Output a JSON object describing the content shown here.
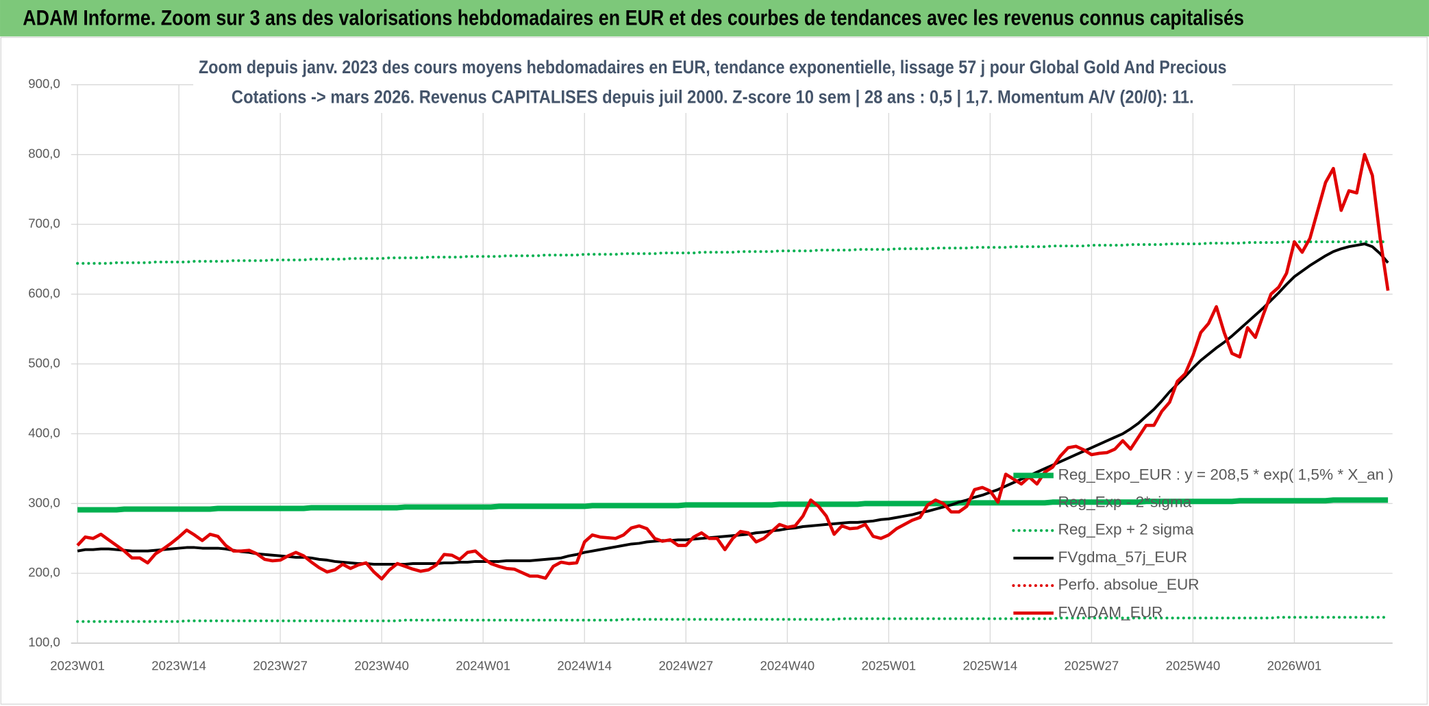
{
  "header": "ADAM Informe. Zoom sur 3 ans des valorisations hebdomadaires en EUR et des courbes de tendances avec les revenus connus capitalisés",
  "chart_data": {
    "type": "line",
    "title_lines": [
      "Zoom depuis janv. 2023 des cours moyens hebdomadaires en EUR, tendance exponentielle, lissage 57 j pour Global Gold And Precious",
      "Cotations -> mars 2026. Revenus CAPITALISES depuis juil 2000. Z-score 10 sem | 28 ans : 0,5 | 1,7. Momentum A/V (20/0): 11."
    ],
    "categories": [
      "2023W01",
      null,
      null,
      null,
      null,
      null,
      null,
      null,
      null,
      null,
      null,
      null,
      null,
      "2023W14",
      null,
      null,
      null,
      null,
      null,
      null,
      null,
      null,
      null,
      null,
      null,
      null,
      "2023W27",
      null,
      null,
      null,
      null,
      null,
      null,
      null,
      null,
      null,
      null,
      null,
      null,
      "2023W40",
      null,
      null,
      null,
      null,
      null,
      null,
      null,
      null,
      null,
      null,
      null,
      null,
      "2024W01",
      null,
      null,
      null,
      null,
      null,
      null,
      null,
      null,
      null,
      null,
      null,
      null,
      "2024W14",
      null,
      null,
      null,
      null,
      null,
      null,
      null,
      null,
      null,
      null,
      null,
      null,
      "2024W27",
      null,
      null,
      null,
      null,
      null,
      null,
      null,
      null,
      null,
      null,
      null,
      null,
      "2024W40",
      null,
      null,
      null,
      null,
      null,
      null,
      null,
      null,
      null,
      null,
      null,
      null,
      "2025W01",
      null,
      null,
      null,
      null,
      null,
      null,
      null,
      null,
      null,
      null,
      null,
      null,
      "2025W14",
      null,
      null,
      null,
      null,
      null,
      null,
      null,
      null,
      null,
      null,
      null,
      null,
      "2025W27",
      null,
      null,
      null,
      null,
      null,
      null,
      null,
      null,
      null,
      null,
      null,
      null,
      "2025W40",
      null,
      null,
      null,
      null,
      null,
      null,
      null,
      null,
      null,
      null,
      null,
      null,
      "2026W01",
      null,
      null,
      null,
      null,
      null,
      null,
      null,
      null,
      null,
      null,
      null,
      null
    ],
    "ylim": [
      100,
      900
    ],
    "yticks": [
      {
        "value": 100,
        "label": "100,0"
      },
      {
        "value": 200,
        "label": "200,0"
      },
      {
        "value": 300,
        "label": "300,0"
      },
      {
        "value": 400,
        "label": "400,0"
      },
      {
        "value": 500,
        "label": "500,0"
      },
      {
        "value": 600,
        "label": "600,0"
      },
      {
        "value": 700,
        "label": "700,0"
      },
      {
        "value": 800,
        "label": "800,0"
      },
      {
        "value": 900,
        "label": "900,0"
      }
    ],
    "grid": true,
    "legend": "right",
    "series": [
      {
        "name": "Reg_Expo_EUR : y = 208,5 * exp( 1,5% *  X_an )",
        "color": "#00b050",
        "style": "solid",
        "width": 6,
        "values": [
          291,
          291,
          291,
          291,
          291,
          291,
          292,
          292,
          292,
          292,
          292,
          292,
          292,
          292,
          292,
          292,
          292,
          292,
          293,
          293,
          293,
          293,
          293,
          293,
          293,
          293,
          293,
          293,
          293,
          293,
          294,
          294,
          294,
          294,
          294,
          294,
          294,
          294,
          294,
          294,
          294,
          294,
          295,
          295,
          295,
          295,
          295,
          295,
          295,
          295,
          295,
          295,
          295,
          295,
          296,
          296,
          296,
          296,
          296,
          296,
          296,
          296,
          296,
          296,
          296,
          296,
          297,
          297,
          297,
          297,
          297,
          297,
          297,
          297,
          297,
          297,
          297,
          297,
          298,
          298,
          298,
          298,
          298,
          298,
          298,
          298,
          298,
          298,
          298,
          298,
          299,
          299,
          299,
          299,
          299,
          299,
          299,
          299,
          299,
          299,
          299,
          300,
          300,
          300,
          300,
          300,
          300,
          300,
          300,
          300,
          300,
          300,
          300,
          301,
          301,
          301,
          301,
          301,
          301,
          301,
          301,
          301,
          301,
          301,
          301,
          302,
          302,
          302,
          302,
          302,
          302,
          302,
          302,
          302,
          302,
          302,
          302,
          303,
          303,
          303,
          303,
          303,
          303,
          303,
          303,
          303,
          303,
          303,
          303,
          304,
          304,
          304,
          304,
          304,
          304,
          304,
          304,
          304,
          304,
          304,
          304,
          305,
          305,
          305,
          305,
          305,
          305,
          305,
          305
        ]
      },
      {
        "name": "Reg_Exp - 2*sigma",
        "color": "#00b050",
        "style": "dotted",
        "width": 3,
        "values": [
          131,
          131,
          131,
          131,
          131,
          131,
          131,
          131,
          131,
          131,
          131,
          131,
          131,
          131,
          132,
          132,
          132,
          132,
          132,
          132,
          132,
          132,
          132,
          132,
          132,
          132,
          132,
          132,
          132,
          132,
          132,
          132,
          132,
          132,
          132,
          132,
          132,
          132,
          132,
          132,
          132,
          132,
          133,
          133,
          133,
          133,
          133,
          133,
          133,
          133,
          133,
          133,
          133,
          133,
          133,
          133,
          133,
          133,
          133,
          133,
          133,
          133,
          133,
          133,
          133,
          133,
          133,
          133,
          133,
          133,
          134,
          134,
          134,
          134,
          134,
          134,
          134,
          134,
          134,
          134,
          134,
          134,
          134,
          134,
          134,
          134,
          134,
          134,
          134,
          134,
          134,
          134,
          134,
          134,
          134,
          134,
          134,
          134,
          135,
          135,
          135,
          135,
          135,
          135,
          135,
          135,
          135,
          135,
          135,
          135,
          135,
          135,
          135,
          135,
          135,
          135,
          135,
          135,
          135,
          135,
          135,
          135,
          135,
          135,
          135,
          135,
          136,
          136,
          136,
          136,
          136,
          136,
          136,
          136,
          136,
          136,
          136,
          136,
          136,
          136,
          136,
          136,
          136,
          136,
          136,
          136,
          136,
          136,
          136,
          136,
          136,
          136,
          136,
          136,
          137,
          137,
          137,
          137,
          137,
          137,
          137,
          137,
          137,
          137,
          137,
          137,
          137,
          137,
          137
        ]
      },
      {
        "name": "Reg_Exp + 2 sigma",
        "color": "#00b050",
        "style": "dotted",
        "width": 3,
        "values": [
          644,
          644,
          644,
          644,
          644,
          645,
          645,
          645,
          645,
          645,
          646,
          646,
          646,
          646,
          646,
          647,
          647,
          647,
          647,
          647,
          648,
          648,
          648,
          648,
          648,
          649,
          649,
          649,
          649,
          649,
          650,
          650,
          650,
          650,
          650,
          651,
          651,
          651,
          651,
          651,
          652,
          652,
          652,
          652,
          652,
          653,
          653,
          653,
          653,
          653,
          654,
          654,
          654,
          654,
          654,
          655,
          655,
          655,
          655,
          655,
          656,
          656,
          656,
          656,
          656,
          657,
          657,
          657,
          657,
          657,
          658,
          658,
          658,
          658,
          658,
          659,
          659,
          659,
          659,
          659,
          660,
          660,
          660,
          660,
          660,
          661,
          661,
          661,
          661,
          661,
          662,
          662,
          662,
          662,
          662,
          663,
          663,
          663,
          663,
          663,
          664,
          664,
          664,
          664,
          664,
          665,
          665,
          665,
          665,
          665,
          666,
          666,
          666,
          666,
          666,
          667,
          667,
          667,
          667,
          667,
          668,
          668,
          668,
          668,
          668,
          669,
          669,
          669,
          669,
          669,
          670,
          670,
          670,
          670,
          670,
          671,
          671,
          671,
          671,
          671,
          672,
          672,
          672,
          672,
          672,
          673,
          673,
          673,
          673,
          673,
          674,
          674,
          674,
          674,
          674,
          675,
          675,
          675,
          675,
          675,
          675,
          675,
          675,
          675,
          675,
          675,
          675,
          675,
          675
        ]
      },
      {
        "name": "FVgdma_57j_EUR",
        "color": "#000000",
        "style": "solid",
        "width": 3,
        "values": [
          232,
          234,
          234,
          235,
          235,
          234,
          233,
          232,
          232,
          232,
          233,
          234,
          235,
          236,
          237,
          237,
          236,
          236,
          236,
          235,
          233,
          231,
          230,
          228,
          227,
          226,
          225,
          224,
          223,
          223,
          222,
          220,
          219,
          217,
          216,
          215,
          214,
          214,
          213,
          213,
          213,
          213,
          213,
          214,
          214,
          214,
          214,
          215,
          215,
          216,
          216,
          217,
          217,
          217,
          217,
          218,
          218,
          218,
          218,
          219,
          220,
          221,
          222,
          225,
          227,
          230,
          232,
          234,
          236,
          238,
          240,
          242,
          243,
          245,
          246,
          247,
          247,
          248,
          248,
          249,
          250,
          251,
          252,
          253,
          254,
          255,
          256,
          258,
          259,
          261,
          262,
          264,
          265,
          267,
          268,
          269,
          270,
          271,
          272,
          273,
          273,
          274,
          275,
          277,
          278,
          280,
          282,
          284,
          287,
          289,
          292,
          295,
          298,
          302,
          305,
          309,
          312,
          316,
          320,
          325,
          330,
          335,
          340,
          345,
          350,
          355,
          360,
          365,
          370,
          375,
          380,
          385,
          390,
          395,
          400,
          407,
          415,
          425,
          435,
          447,
          460,
          471,
          482,
          494,
          505,
          514,
          523,
          531,
          540,
          550,
          560,
          570,
          580,
          591,
          602,
          614,
          625,
          633,
          641,
          648,
          655,
          661,
          665,
          668,
          670,
          672,
          668,
          658,
          645
        ]
      },
      {
        "name": "Perfo. absolue_EUR",
        "color": "#e00000",
        "style": "dotted",
        "width": 3,
        "values": [
          null,
          null,
          null,
          null,
          null,
          null,
          null,
          null,
          null,
          null,
          null,
          null,
          null,
          null,
          null,
          null,
          null,
          null,
          null,
          null,
          null,
          null,
          null,
          null,
          null,
          null,
          null,
          null,
          null,
          null,
          null,
          null,
          null,
          null,
          null,
          null,
          null,
          null,
          null,
          null,
          null,
          null,
          null,
          null,
          null,
          null,
          null,
          null,
          null,
          null,
          null,
          null,
          null,
          null,
          null,
          null,
          null,
          null,
          null,
          null,
          null,
          null,
          null,
          null,
          null,
          null,
          null,
          null,
          null,
          null,
          null,
          null,
          null,
          null,
          null,
          null,
          null,
          null,
          null,
          null,
          null,
          null,
          null,
          null,
          null,
          null,
          null,
          null,
          null,
          null,
          null,
          null,
          null,
          null,
          null,
          null,
          null,
          null,
          null,
          null,
          null,
          null,
          null,
          null,
          null,
          null,
          null,
          null,
          null,
          null,
          null,
          null,
          null,
          null,
          null,
          null,
          null,
          null,
          null,
          null,
          null,
          null,
          null,
          null,
          null,
          null,
          null,
          null,
          null,
          null,
          null,
          null,
          null,
          null,
          null,
          null,
          null,
          null,
          null,
          null,
          null,
          null,
          null,
          null,
          null,
          null,
          null,
          null,
          null,
          null,
          null,
          null,
          null,
          null,
          null,
          null,
          null,
          null,
          null,
          null,
          null,
          null,
          null,
          null,
          null,
          null,
          null,
          null,
          null
        ]
      },
      {
        "name": "FVADAM_EUR",
        "color": "#e00000",
        "style": "solid",
        "width": 3.5,
        "values": [
          240,
          252,
          250,
          256,
          248,
          240,
          232,
          222,
          222,
          215,
          228,
          235,
          243,
          252,
          262,
          255,
          247,
          256,
          253,
          240,
          232,
          232,
          233,
          228,
          220,
          218,
          219,
          225,
          230,
          225,
          216,
          208,
          202,
          205,
          213,
          207,
          212,
          215,
          202,
          192,
          205,
          214,
          210,
          206,
          203,
          205,
          212,
          227,
          226,
          220,
          230,
          232,
          222,
          214,
          210,
          207,
          206,
          201,
          196,
          196,
          193,
          210,
          216,
          214,
          215,
          245,
          255,
          252,
          251,
          250,
          255,
          265,
          268,
          264,
          250,
          246,
          248,
          240,
          240,
          252,
          258,
          250,
          250,
          234,
          250,
          260,
          258,
          245,
          250,
          260,
          270,
          266,
          268,
          282,
          305,
          296,
          282,
          256,
          268,
          264,
          265,
          270,
          253,
          250,
          255,
          264,
          270,
          276,
          280,
          298,
          305,
          300,
          288,
          288,
          296,
          320,
          323,
          318,
          302,
          342,
          335,
          328,
          338,
          328,
          345,
          352,
          368,
          380,
          382,
          377,
          370,
          372,
          373,
          378,
          390,
          378,
          395,
          412,
          412,
          432,
          445,
          475,
          486,
          512,
          545,
          558,
          582,
          545,
          515,
          510,
          552,
          538,
          570,
          600,
          610,
          630,
          675,
          660,
          680,
          720,
          760,
          780,
          720,
          748,
          745,
          800,
          770,
          680,
          605
        ]
      }
    ]
  }
}
